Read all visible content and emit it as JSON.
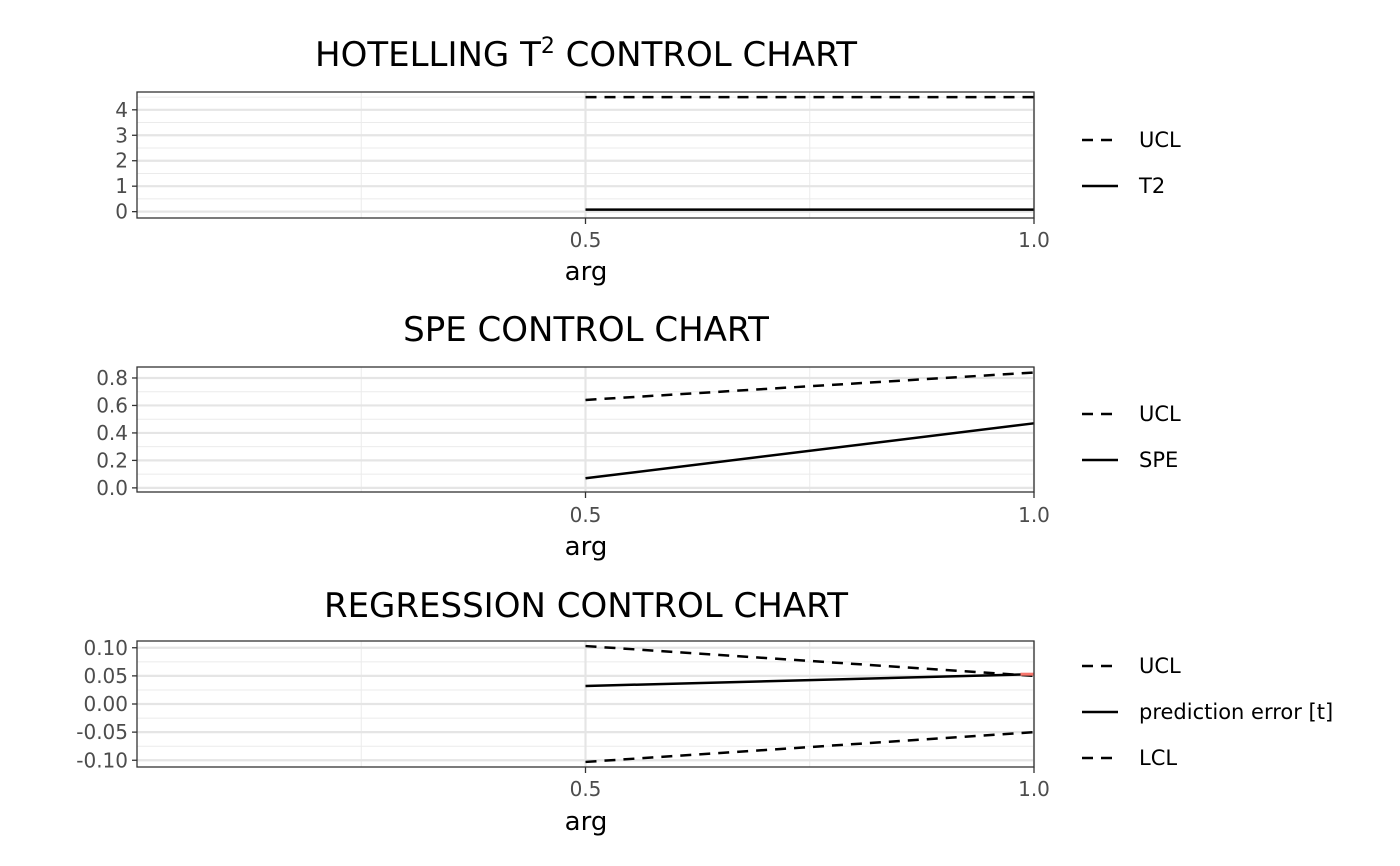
{
  "chart_data": [
    {
      "type": "line",
      "title": "HOTELLING T",
      "title_superscript": "2",
      "title_suffix": " CONTROL CHART",
      "xlabel": "arg",
      "ylabel": "",
      "xlim": [
        0.0,
        1.0
      ],
      "ylim": [
        -0.25,
        4.7
      ],
      "x_ticks": [
        0.5,
        1.0
      ],
      "x_tick_labels": [
        "0.5",
        "1.0"
      ],
      "y_ticks": [
        0,
        1,
        2,
        3,
        4
      ],
      "y_tick_labels": [
        "0",
        "1",
        "2",
        "3",
        "4"
      ],
      "grid": true,
      "legend_position": "right",
      "series": [
        {
          "name": "UCL",
          "linetype": "dashed",
          "color": "#000000",
          "x": [
            0.5,
            1.0
          ],
          "values": [
            4.5,
            4.5
          ]
        },
        {
          "name": "T2",
          "linetype": "solid",
          "color": "#000000",
          "x": [
            0.5,
            1.0
          ],
          "values": [
            0.08,
            0.08
          ]
        }
      ],
      "highlight_segment": null
    },
    {
      "type": "line",
      "title": "SPE CONTROL CHART",
      "title_superscript": "",
      "title_suffix": "",
      "xlabel": "arg",
      "ylabel": "",
      "xlim": [
        0.0,
        1.0
      ],
      "ylim": [
        -0.03,
        0.88
      ],
      "x_ticks": [
        0.5,
        1.0
      ],
      "x_tick_labels": [
        "0.5",
        "1.0"
      ],
      "y_ticks": [
        0.0,
        0.2,
        0.4,
        0.6,
        0.8
      ],
      "y_tick_labels": [
        "0.0",
        "0.2",
        "0.4",
        "0.6",
        "0.8"
      ],
      "grid": true,
      "legend_position": "right",
      "series": [
        {
          "name": "UCL",
          "linetype": "dashed",
          "color": "#000000",
          "x": [
            0.5,
            1.0
          ],
          "values": [
            0.64,
            0.84
          ]
        },
        {
          "name": "SPE",
          "linetype": "solid",
          "color": "#000000",
          "x": [
            0.5,
            1.0
          ],
          "values": [
            0.07,
            0.47
          ]
        }
      ],
      "highlight_segment": null
    },
    {
      "type": "line",
      "title": "REGRESSION CONTROL CHART",
      "title_superscript": "",
      "title_suffix": "",
      "xlabel": "arg",
      "ylabel": "",
      "xlim": [
        0.0,
        1.0
      ],
      "ylim": [
        -0.112,
        0.112
      ],
      "x_ticks": [
        0.5,
        1.0
      ],
      "x_tick_labels": [
        "0.5",
        "1.0"
      ],
      "y_ticks": [
        -0.1,
        -0.05,
        0.0,
        0.05,
        0.1
      ],
      "y_tick_labels": [
        "-0.10",
        "-0.05",
        "0.00",
        "0.05",
        "0.10"
      ],
      "grid": true,
      "legend_position": "right",
      "series": [
        {
          "name": "UCL",
          "linetype": "dashed",
          "color": "#000000",
          "x": [
            0.5,
            1.0
          ],
          "values": [
            0.103,
            0.05
          ]
        },
        {
          "name": "prediction error [t]",
          "linetype": "solid",
          "color": "#000000",
          "x": [
            0.5,
            1.0
          ],
          "values": [
            0.032,
            0.053
          ]
        },
        {
          "name": "LCL",
          "linetype": "dashed",
          "color": "#000000",
          "x": [
            0.5,
            1.0
          ],
          "values": [
            -0.103,
            -0.05
          ]
        }
      ],
      "highlight_segment": {
        "color": "#f8766d",
        "x": [
          0.985,
          1.0
        ],
        "values": [
          0.053,
          0.053
        ]
      }
    }
  ]
}
